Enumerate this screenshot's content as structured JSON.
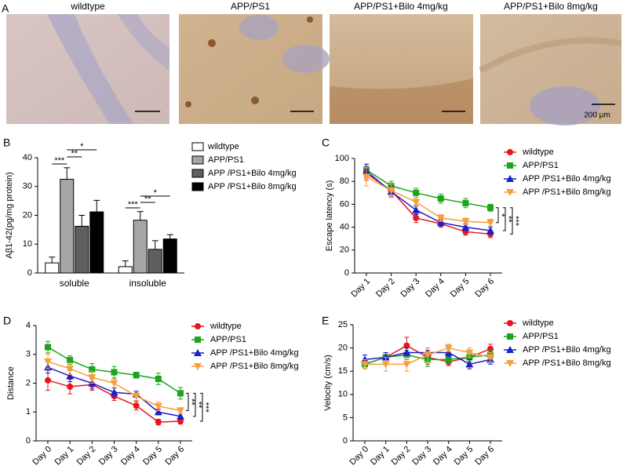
{
  "panel_a": {
    "label": "A",
    "titles": [
      "wildtype",
      "APP/PS1",
      "APP/PS1+Bilo 4mg/kg",
      "APP/PS1+Bilo 8mg/kg"
    ],
    "scale_bar": "200 μm"
  },
  "chart_data": [
    {
      "type": "bar",
      "label": "B",
      "y_label": "Aβ1-42(pg/mg protein)",
      "categories": [
        "soluble",
        "insoluble"
      ],
      "ylim": [
        0,
        40
      ],
      "yticks": [
        0,
        10,
        20,
        30,
        40
      ],
      "series": [
        {
          "name": "wildtype",
          "color": "#ffffff",
          "values": [
            3.5,
            2.2
          ],
          "errors": [
            2,
            2
          ]
        },
        {
          "name": "APP/PS1",
          "color": "#a6a6a6",
          "values": [
            32.5,
            18.3
          ],
          "errors": [
            4,
            3
          ]
        },
        {
          "name": "APP /PS1+Bilo 4mg/kg",
          "color": "#5f5f5f",
          "values": [
            16.2,
            8.2
          ],
          "errors": [
            3.8,
            3
          ]
        },
        {
          "name": "APP /PS1+Bilo 8mg/kg",
          "color": "#000000",
          "values": [
            21.2,
            11.8
          ],
          "errors": [
            4,
            1.5
          ]
        }
      ],
      "significance": [
        "***",
        "**",
        "*",
        "***",
        "**",
        "*"
      ]
    },
    {
      "type": "line",
      "label": "C",
      "y_label": "Escape latency (s)",
      "categories": [
        "Day 1",
        "Day 2",
        "Day 3",
        "Day 4",
        "Day 5",
        "Day 6"
      ],
      "ylim": [
        0,
        100
      ],
      "yticks": [
        0,
        20,
        40,
        60,
        80,
        100
      ],
      "series": [
        {
          "name": "wildtype",
          "color": "#e8141e",
          "marker": "circle",
          "values": [
            87,
            72,
            48,
            43,
            36,
            34
          ],
          "errors": [
            6,
            5,
            4,
            3,
            3,
            3
          ]
        },
        {
          "name": "APP/PS1",
          "color": "#1aa51a",
          "marker": "square",
          "values": [
            90,
            76,
            70,
            65,
            61,
            57
          ],
          "errors": [
            5,
            4,
            4,
            4,
            4,
            3
          ]
        },
        {
          "name": "APP /PS1+Bilo 4mg/kg",
          "color": "#1e1ec8",
          "marker": "triangle",
          "values": [
            89,
            71,
            55,
            44,
            40,
            37
          ],
          "errors": [
            6,
            5,
            4,
            3,
            3,
            3
          ]
        },
        {
          "name": "APP /PS1+Bilo 8mg/kg",
          "color": "#f5a03c",
          "marker": "triangle-down",
          "values": [
            84,
            72,
            62,
            48,
            45,
            44
          ],
          "errors": [
            8,
            6,
            4,
            3,
            3,
            3
          ]
        }
      ],
      "significance": [
        "*",
        "**",
        "***"
      ]
    },
    {
      "type": "line",
      "label": "D",
      "y_label": "Distance",
      "categories": [
        "Day 0",
        "Day 1",
        "Day 2",
        "Day 3",
        "Day 4",
        "Day 5",
        "Day 6"
      ],
      "ylim": [
        0,
        4
      ],
      "yticks": [
        0,
        1,
        2,
        3,
        4
      ],
      "series": [
        {
          "name": "wildtype",
          "color": "#e8141e",
          "marker": "circle",
          "values": [
            2.1,
            1.88,
            1.95,
            1.55,
            1.22,
            0.65,
            0.68
          ],
          "errors": [
            0.35,
            0.25,
            0.2,
            0.15,
            0.15,
            0.1,
            0.1
          ]
        },
        {
          "name": "APP/PS1",
          "color": "#1aa51a",
          "marker": "square",
          "values": [
            3.25,
            2.8,
            2.48,
            2.38,
            2.28,
            2.15,
            1.65
          ],
          "errors": [
            0.2,
            0.15,
            0.2,
            0.2,
            0.1,
            0.2,
            0.2
          ]
        },
        {
          "name": "APP /PS1+Bilo 4mg/kg",
          "color": "#1e1ec8",
          "marker": "triangle",
          "values": [
            2.55,
            2.25,
            2.0,
            1.68,
            1.62,
            1.0,
            0.85
          ],
          "errors": [
            0.2,
            0.2,
            0.2,
            0.15,
            0.1,
            0.1,
            0.1
          ]
        },
        {
          "name": "APP /PS1+Bilo 8mg/kg",
          "color": "#f5a03c",
          "marker": "triangle-down",
          "values": [
            2.75,
            2.5,
            2.2,
            2.0,
            1.55,
            1.2,
            1.05
          ],
          "errors": [
            0.25,
            0.2,
            0.2,
            0.15,
            0.15,
            0.15,
            0.1
          ]
        }
      ],
      "significance": [
        "**",
        "**",
        "***"
      ]
    },
    {
      "type": "line",
      "label": "E",
      "y_label": "Velocity (cm/s)",
      "categories": [
        "Day 0",
        "Day 1",
        "Day 2",
        "Day 3",
        "Day 4",
        "Day 5",
        "Day 6"
      ],
      "ylim": [
        0,
        25
      ],
      "yticks": [
        0,
        5,
        10,
        15,
        20,
        25
      ],
      "series": [
        {
          "name": "wildtype",
          "color": "#e8141e",
          "marker": "circle",
          "values": [
            16.5,
            18,
            20.5,
            18,
            17,
            18,
            19.8
          ],
          "errors": [
            1,
            1,
            1.8,
            1.5,
            0.8,
            1,
            1
          ]
        },
        {
          "name": "APP/PS1",
          "color": "#1aa51a",
          "marker": "square",
          "values": [
            16.5,
            18,
            18.5,
            17.5,
            17.5,
            18,
            18.5
          ],
          "errors": [
            1,
            1,
            1,
            1.5,
            0.8,
            1,
            1
          ]
        },
        {
          "name": "APP /PS1+Bilo 4mg/kg",
          "color": "#1e1ec8",
          "marker": "triangle",
          "values": [
            17.5,
            18,
            19,
            19,
            19,
            16.5,
            17.5
          ],
          "errors": [
            1,
            1,
            1,
            1,
            0.8,
            1,
            1
          ]
        },
        {
          "name": "APP /PS1+Bilo 8mg/kg",
          "color": "#f5a03c",
          "marker": "triangle-down",
          "values": [
            16.5,
            16.5,
            16.5,
            18.5,
            20,
            19,
            18
          ],
          "errors": [
            1,
            1.5,
            1.5,
            1.5,
            0.8,
            1,
            1
          ]
        }
      ]
    }
  ]
}
